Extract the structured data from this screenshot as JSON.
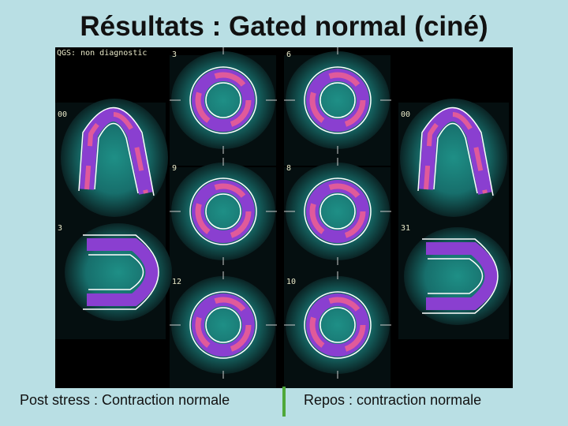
{
  "header": {
    "title": "Résultats : Gated normal (ciné)"
  },
  "image": {
    "labels": [
      "QGS: non diagnostic",
      "3",
      "6",
      "00",
      "00",
      "9",
      "8",
      "3",
      "31",
      "12",
      "10"
    ]
  },
  "captions": {
    "left": "Post stress : Contraction normale",
    "right": "Repos : contraction normale"
  }
}
